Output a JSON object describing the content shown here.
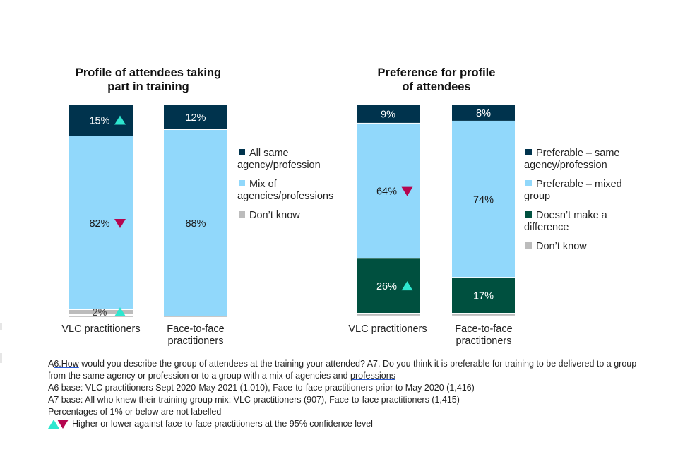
{
  "colors": {
    "navy": "#00334d",
    "light_blue": "#91d8fb",
    "dark_green": "#00503f",
    "gray": "#bcbcbc",
    "higher_marker": "#2ee6cf",
    "lower_marker": "#b5064f"
  },
  "chart_data": [
    {
      "type": "bar",
      "stacked": true,
      "title": "Profile of attendees taking part in training",
      "title_lines": [
        "Profile of attendees taking",
        "part in training"
      ],
      "categories": [
        "VLC practitioners",
        "Face-to-face practitioners"
      ],
      "category_lines": [
        [
          "VLC practitioners"
        ],
        [
          "Face-to-face",
          "practitioners"
        ]
      ],
      "ylim": [
        0,
        100
      ],
      "legend_position": "right",
      "series": [
        {
          "name": "All same agency/profession",
          "legend_lines": [
            "All same",
            "agency/profession"
          ],
          "color_key": "navy",
          "label_color": "#ffffff",
          "values": [
            15,
            12
          ],
          "labels": [
            "15%",
            "12%"
          ],
          "markers": [
            "up",
            null
          ]
        },
        {
          "name": "Mix of agencies/professions",
          "legend_lines": [
            "Mix of",
            "agencies/professions"
          ],
          "color_key": "light_blue",
          "label_color": "#1a1a1a",
          "values": [
            82,
            88
          ],
          "labels": [
            "82%",
            "88%"
          ],
          "markers": [
            "down",
            null
          ]
        },
        {
          "name": "Don't know",
          "legend_lines": [
            "Don’t know"
          ],
          "color_key": "gray",
          "label_color": "#444444",
          "values": [
            2,
            0
          ],
          "labels": [
            "2%",
            ""
          ],
          "markers": [
            "up",
            null
          ]
        }
      ]
    },
    {
      "type": "bar",
      "stacked": true,
      "title": "Preference for profile of attendees",
      "title_lines": [
        "Preference for profile",
        "of attendees"
      ],
      "categories": [
        "VLC practitioners",
        "Face-to-face practitioners"
      ],
      "category_lines": [
        [
          "VLC practitioners"
        ],
        [
          "Face-to-face",
          "practitioners"
        ]
      ],
      "ylim": [
        0,
        100
      ],
      "legend_position": "right",
      "series": [
        {
          "name": "Preferable – same agency/profession",
          "legend_lines": [
            "Preferable – same",
            "agency/profession"
          ],
          "color_key": "navy",
          "label_color": "#ffffff",
          "values": [
            9,
            8
          ],
          "labels": [
            "9%",
            "8%"
          ],
          "markers": [
            null,
            null
          ]
        },
        {
          "name": "Preferable – mixed group",
          "legend_lines": [
            "Preferable – mixed",
            "group"
          ],
          "color_key": "light_blue",
          "label_color": "#1a1a1a",
          "values": [
            64,
            74
          ],
          "labels": [
            "64%",
            "74%"
          ],
          "markers": [
            "down",
            null
          ]
        },
        {
          "name": "Doesn't make a difference",
          "legend_lines": [
            "Doesn’t make a",
            "difference"
          ],
          "color_key": "dark_green",
          "label_color": "#ffffff",
          "values": [
            26,
            17
          ],
          "labels": [
            "26%",
            "17%"
          ],
          "markers": [
            "up",
            null
          ]
        },
        {
          "name": "Don't know",
          "legend_lines": [
            "Don’t know"
          ],
          "color_key": "gray",
          "label_color": "#444444",
          "values": [
            1,
            1
          ],
          "labels": [
            "",
            ""
          ],
          "markers": [
            null,
            null
          ]
        }
      ]
    }
  ],
  "notes": {
    "q_prefix": "A",
    "q_link": "6.How",
    "q_text1": " would you describe the group of attendees at the training your attended? A7. Do you think it is preferable for training to be delivered to a group from the same agency or profession or to a group with a mix of agencies and ",
    "q_link2": "professions",
    "a6_base": "A6 base: VLC practitioners Sept 2020-May 2021 (1,010), Face-to-face practitioners prior to May 2020 (1,416)",
    "a7_base": "A7 base: All who knew their training group mix: VLC practitioners (907), Face-to-face practitioners (1,415)",
    "pct_note": "Percentages of 1% or below are not labelled",
    "marker_note": "Higher or lower against face-to-face practitioners at the 95% confidence level"
  }
}
